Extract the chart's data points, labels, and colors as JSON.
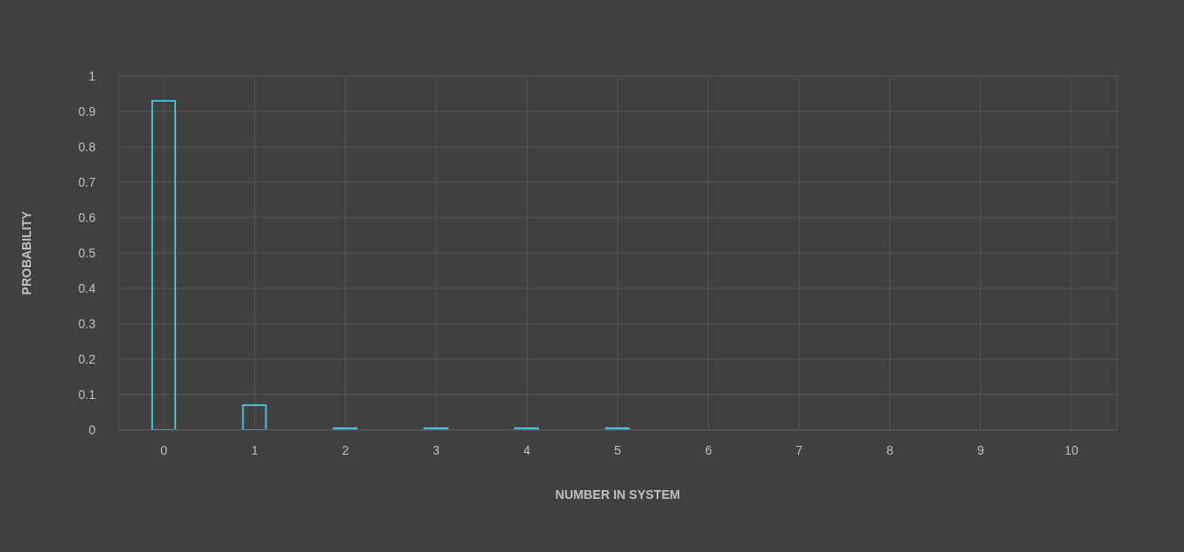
{
  "chart_data": {
    "type": "bar",
    "xlabel": "NUMBER IN SYSTEM",
    "ylabel": "PROBABILITY",
    "categories": [
      "0",
      "1",
      "2",
      "3",
      "4",
      "5",
      "6",
      "7",
      "8",
      "9",
      "10"
    ],
    "values": [
      0.93,
      0.07,
      0.005,
      0.005,
      0.005,
      0.005,
      0,
      0,
      0,
      0,
      0
    ],
    "color": "#4bb8d8",
    "ylim": [
      0,
      1
    ],
    "yticks": [
      0,
      0.1,
      0.2,
      0.3,
      0.4,
      0.5,
      0.6,
      0.7,
      0.8,
      0.9,
      1
    ],
    "grid": true
  }
}
